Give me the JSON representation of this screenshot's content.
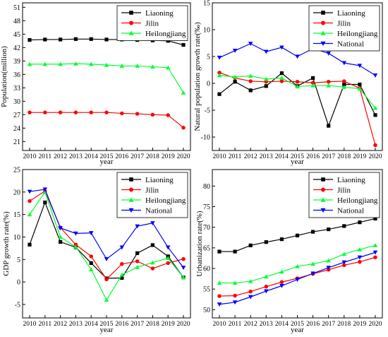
{
  "series_names": [
    "Liaoning",
    "Jilin",
    "Heilongjiang",
    "National"
  ],
  "series_colors": {
    "Liaoning": "#000000",
    "Jilin": "#ff0000",
    "Heilongjiang": "#00ff33",
    "National": "#0000ff"
  },
  "series_markers": {
    "Liaoning": "square",
    "Jilin": "circle",
    "Heilongjiang": "triangle-up",
    "National": "triangle-down"
  },
  "chart_data": [
    {
      "type": "line",
      "title": "",
      "xlabel": "year",
      "ylabel": "Population(million)",
      "x": [
        "2010",
        "2011",
        "2012",
        "2013",
        "2014",
        "2015",
        "2016",
        "2017",
        "2018",
        "2019",
        "2020"
      ],
      "ylim": [
        19,
        52
      ],
      "yticks": [
        21,
        24,
        27,
        30,
        33,
        36,
        39,
        42,
        45,
        48,
        51
      ],
      "legend": "top-right",
      "grid": false,
      "series": [
        {
          "name": "Liaoning",
          "values": [
            43.7,
            43.8,
            43.8,
            43.9,
            43.9,
            43.8,
            43.8,
            43.7,
            43.6,
            43.5,
            42.6
          ]
        },
        {
          "name": "Jilin",
          "values": [
            27.5,
            27.5,
            27.5,
            27.5,
            27.5,
            27.5,
            27.3,
            27.2,
            27.0,
            26.9,
            24.1
          ]
        },
        {
          "name": "Heilongjiang",
          "values": [
            38.3,
            38.3,
            38.3,
            38.4,
            38.3,
            38.1,
            37.9,
            37.9,
            37.7,
            37.5,
            31.9
          ]
        }
      ]
    },
    {
      "type": "line",
      "title": "",
      "xlabel": "year",
      "ylabel": "Natural population growth rate(‰)",
      "x": [
        "2010",
        "2011",
        "2012",
        "2013",
        "2014",
        "2015",
        "2016",
        "2017",
        "2018",
        "2019",
        "2020"
      ],
      "ylim": [
        -12.5,
        15
      ],
      "yticks": [
        -10,
        -5,
        0,
        5,
        10,
        15
      ],
      "legend": "top-right",
      "grid": false,
      "series": [
        {
          "name": "Liaoning",
          "values": [
            -2.0,
            0.3,
            -1.3,
            -0.5,
            1.9,
            -0.5,
            1.0,
            -7.9,
            -0.2,
            -0.2,
            -5.9
          ]
        },
        {
          "name": "Jilin",
          "values": [
            2.0,
            1.0,
            0.4,
            0.3,
            0.4,
            0.3,
            0.1,
            0.3,
            0.4,
            -0.9,
            -11.5
          ]
        },
        {
          "name": "Heilongjiang",
          "values": [
            1.5,
            1.2,
            1.4,
            0.8,
            1.0,
            -0.6,
            -0.4,
            -0.4,
            -0.7,
            -1.0,
            -4.6
          ]
        },
        {
          "name": "National",
          "values": [
            4.8,
            6.1,
            7.4,
            5.9,
            6.7,
            5.0,
            6.5,
            5.6,
            3.8,
            3.3,
            1.5
          ]
        }
      ]
    },
    {
      "type": "line",
      "title": "",
      "xlabel": "year",
      "ylabel": "GDP growth rate(%)",
      "x": [
        "2010",
        "2011",
        "2012",
        "2013",
        "2014",
        "2015",
        "2016",
        "2017",
        "2018",
        "2019",
        "2020"
      ],
      "ylim": [
        -8,
        25
      ],
      "yticks": [
        -5,
        0,
        5,
        10,
        15,
        20,
        25
      ],
      "legend": "top-right",
      "grid": false,
      "series": [
        {
          "name": "Liaoning",
          "values": [
            8.3,
            17.7,
            8.9,
            7.7,
            4.2,
            0.8,
            0.9,
            6.4,
            8.2,
            5.7,
            1.0
          ]
        },
        {
          "name": "Jilin",
          "values": [
            18.0,
            20.2,
            12.1,
            8.3,
            5.7,
            0.6,
            4.0,
            4.6,
            3.0,
            4.2,
            5.1
          ]
        },
        {
          "name": "Heilongjiang",
          "values": [
            15.0,
            20.0,
            10.0,
            7.8,
            2.8,
            -4.0,
            1.6,
            3.3,
            4.3,
            5.3,
            1.0
          ]
        },
        {
          "name": "National",
          "values": [
            20.1,
            20.6,
            12.0,
            10.8,
            10.9,
            5.1,
            7.7,
            12.4,
            13.1,
            7.7,
            3.2
          ]
        }
      ]
    },
    {
      "type": "line",
      "title": "",
      "xlabel": "year",
      "ylabel": "Urbanization rate(%)",
      "x": [
        "2010",
        "2011",
        "2012",
        "2013",
        "2014",
        "2015",
        "2016",
        "2017",
        "2018",
        "2019",
        "2020"
      ],
      "ylim": [
        48,
        84
      ],
      "yticks": [
        50,
        55,
        60,
        65,
        70,
        75,
        80
      ],
      "legend": "top-right",
      "grid": false,
      "series": [
        {
          "name": "Liaoning",
          "values": [
            64.1,
            64.1,
            65.6,
            66.4,
            67.1,
            68.0,
            68.9,
            69.5,
            70.3,
            71.2,
            72.1
          ]
        },
        {
          "name": "Jilin",
          "values": [
            53.3,
            53.4,
            54.4,
            55.6,
            56.7,
            57.6,
            58.7,
            59.7,
            60.8,
            61.6,
            62.7
          ]
        },
        {
          "name": "Heilongjiang",
          "values": [
            56.5,
            56.5,
            56.9,
            58.0,
            59.2,
            60.5,
            61.1,
            61.9,
            63.5,
            64.6,
            65.6
          ]
        },
        {
          "name": "National",
          "values": [
            51.3,
            51.8,
            53.1,
            54.5,
            55.8,
            57.3,
            58.8,
            60.2,
            61.5,
            62.7,
            63.9
          ]
        }
      ]
    }
  ]
}
